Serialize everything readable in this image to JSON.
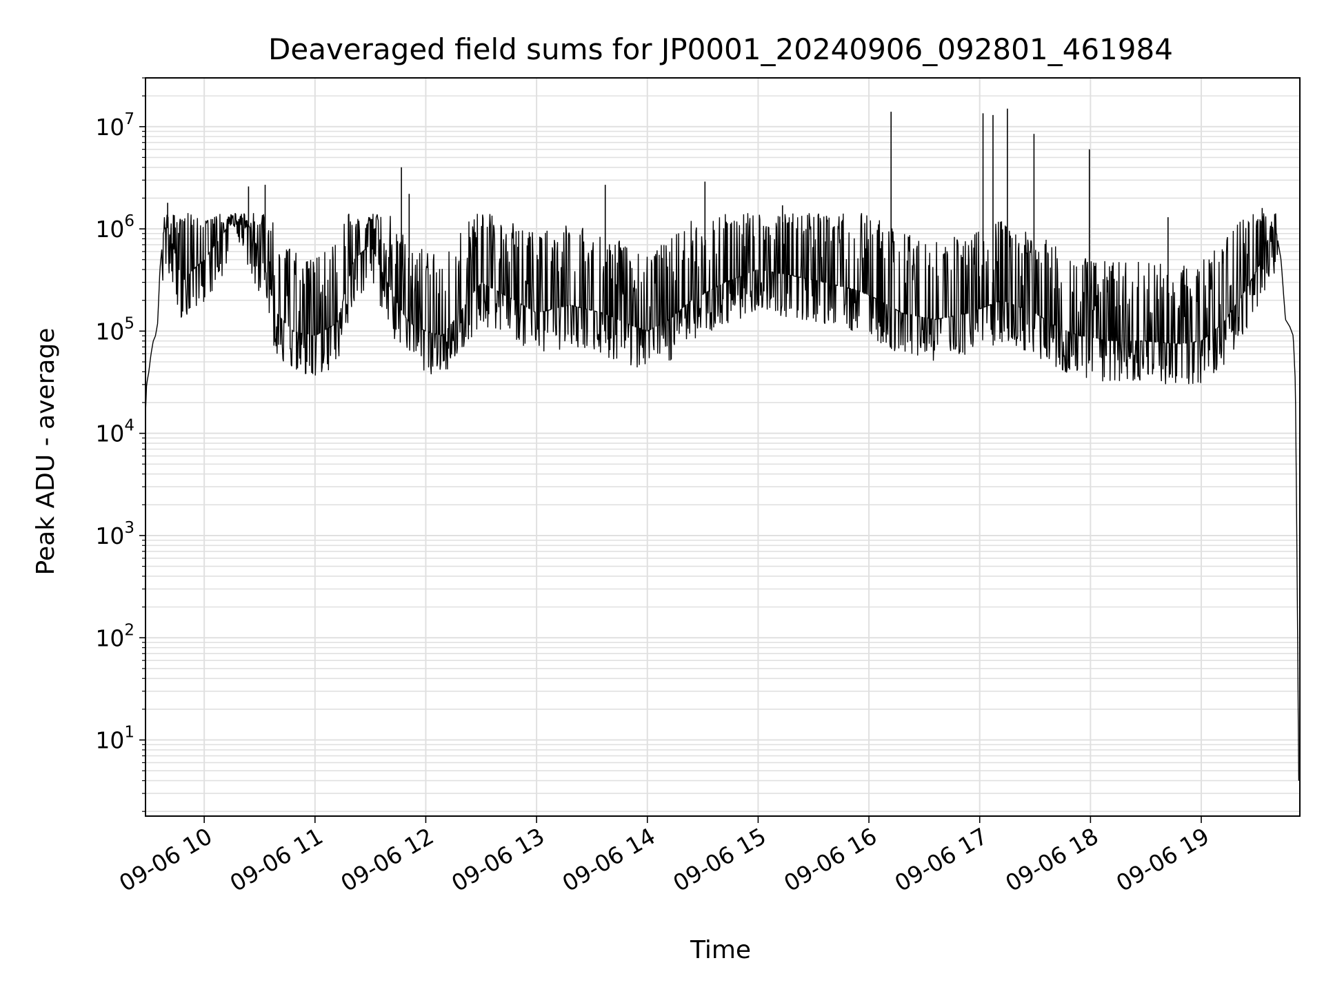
{
  "chart_data": {
    "type": "line",
    "title": "Deaveraged field sums for JP0001_20240906_092801_461984",
    "xlabel": "Time",
    "ylabel": "Peak ADU - average",
    "x_range": [
      "2024-09-06T09:28:00",
      "2024-09-06T19:52:00"
    ],
    "xlim_hours": [
      9.47,
      19.89
    ],
    "y_scale": "log",
    "ylim": [
      1.8,
      30000000
    ],
    "grid": "on (major and minor)",
    "line_color": "#000000",
    "grid_color": "#e0e0e0",
    "x_ticks": [
      {
        "hour": 10,
        "label": "09-06 10"
      },
      {
        "hour": 11,
        "label": "09-06 11"
      },
      {
        "hour": 12,
        "label": "09-06 12"
      },
      {
        "hour": 13,
        "label": "09-06 13"
      },
      {
        "hour": 14,
        "label": "09-06 14"
      },
      {
        "hour": 15,
        "label": "09-06 15"
      },
      {
        "hour": 16,
        "label": "09-06 16"
      },
      {
        "hour": 17,
        "label": "09-06 17"
      },
      {
        "hour": 18,
        "label": "09-06 18"
      },
      {
        "hour": 19,
        "label": "09-06 19"
      }
    ],
    "y_ticks": [
      {
        "value": 10,
        "base": "10",
        "exp": "1"
      },
      {
        "value": 100,
        "base": "10",
        "exp": "2"
      },
      {
        "value": 1000,
        "base": "10",
        "exp": "3"
      },
      {
        "value": 10000,
        "base": "10",
        "exp": "4"
      },
      {
        "value": 100000,
        "base": "10",
        "exp": "5"
      },
      {
        "value": 1000000,
        "base": "10",
        "exp": "6"
      },
      {
        "value": 10000000,
        "base": "10",
        "exp": "7"
      }
    ],
    "series": [
      {
        "points": [
          [
            9.47,
            16000
          ],
          [
            9.48,
            30000
          ],
          [
            9.5,
            40000
          ],
          [
            9.52,
            60000
          ],
          [
            9.54,
            80000
          ],
          [
            9.56,
            90000
          ],
          [
            9.58,
            120000
          ],
          [
            9.6,
            400000
          ],
          [
            9.63,
            900000
          ],
          [
            9.66,
            1100000
          ],
          [
            9.7,
            800000
          ],
          [
            9.75,
            500000
          ],
          [
            9.8,
            300000
          ],
          [
            9.9,
            400000
          ],
          [
            10.0,
            500000
          ],
          [
            10.1,
            700000
          ],
          [
            10.2,
            1000000
          ],
          [
            10.25,
            2200000
          ],
          [
            10.35,
            1500000
          ],
          [
            10.45,
            800000
          ],
          [
            10.55,
            400000
          ],
          [
            10.65,
            150000
          ],
          [
            10.8,
            100000
          ],
          [
            11.0,
            90000
          ],
          [
            11.2,
            120000
          ],
          [
            11.35,
            500000
          ],
          [
            11.5,
            700000
          ],
          [
            11.65,
            300000
          ],
          [
            11.75,
            180000
          ],
          [
            11.85,
            120000
          ],
          [
            12.0,
            100000
          ],
          [
            12.15,
            90000
          ],
          [
            12.3,
            150000
          ],
          [
            12.5,
            300000
          ],
          [
            12.8,
            200000
          ],
          [
            13.0,
            150000
          ],
          [
            13.3,
            180000
          ],
          [
            13.6,
            150000
          ],
          [
            13.8,
            120000
          ],
          [
            14.0,
            100000
          ],
          [
            14.2,
            130000
          ],
          [
            14.4,
            200000
          ],
          [
            14.7,
            300000
          ],
          [
            15.0,
            400000
          ],
          [
            15.3,
            350000
          ],
          [
            15.6,
            300000
          ],
          [
            15.9,
            250000
          ],
          [
            16.1,
            200000
          ],
          [
            16.3,
            150000
          ],
          [
            16.6,
            130000
          ],
          [
            16.9,
            150000
          ],
          [
            17.2,
            200000
          ],
          [
            17.5,
            150000
          ],
          [
            17.7,
            110000
          ],
          [
            17.9,
            90000
          ],
          [
            18.2,
            80000
          ],
          [
            18.5,
            80000
          ],
          [
            18.8,
            75000
          ],
          [
            19.0,
            80000
          ],
          [
            19.2,
            120000
          ],
          [
            19.4,
            250000
          ],
          [
            19.55,
            500000
          ],
          [
            19.63,
            1000000
          ],
          [
            19.68,
            900000
          ],
          [
            19.72,
            500000
          ],
          [
            19.76,
            130000
          ],
          [
            19.8,
            110000
          ],
          [
            19.83,
            90000
          ],
          [
            19.85,
            30000
          ],
          [
            19.87,
            100
          ],
          [
            19.88,
            4
          ]
        ],
        "spikes": [
          [
            9.67,
            1800000
          ],
          [
            10.4,
            2600000
          ],
          [
            10.55,
            2700000
          ],
          [
            11.78,
            4000000
          ],
          [
            11.85,
            2200000
          ],
          [
            13.62,
            2700000
          ],
          [
            14.52,
            2900000
          ],
          [
            15.22,
            1700000
          ],
          [
            16.2,
            14000000
          ],
          [
            17.03,
            13500000
          ],
          [
            17.12,
            13000000
          ],
          [
            17.25,
            15000000
          ],
          [
            17.49,
            8500000
          ],
          [
            17.99,
            6000000
          ],
          [
            18.7,
            1300000
          ],
          [
            19.55,
            1600000
          ]
        ],
        "noise_band": {
          "low": 50000,
          "high": 1100000
        }
      }
    ]
  }
}
